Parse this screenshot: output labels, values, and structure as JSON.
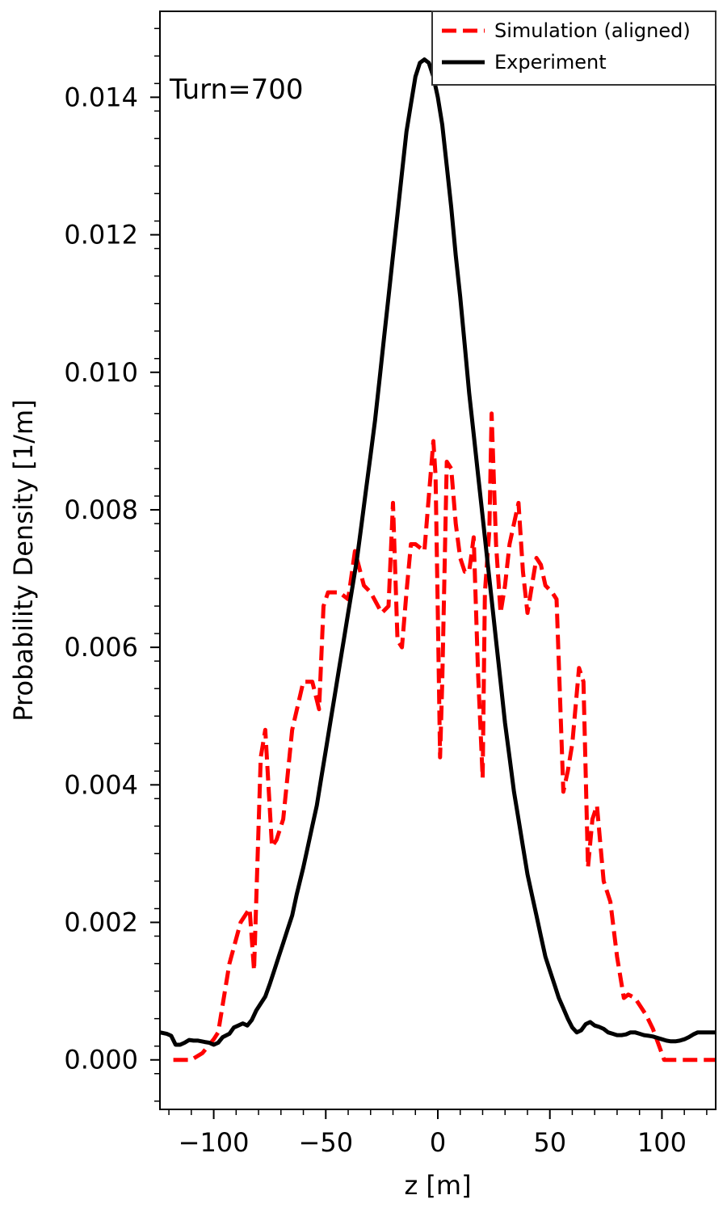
{
  "chart_data": {
    "type": "line",
    "title": "",
    "xlabel": "z [m]",
    "ylabel": "Probability Density [1/m]",
    "xlim": [
      -124,
      124
    ],
    "ylim": [
      -0.00072,
      0.01525
    ],
    "xticks": [
      -100,
      -50,
      0,
      50,
      100
    ],
    "xtick_labels": [
      "−100",
      "−50",
      "0",
      "50",
      "100"
    ],
    "yticks": [
      0.0,
      0.002,
      0.004,
      0.006,
      0.008,
      0.01,
      0.012,
      0.014
    ],
    "ytick_labels": [
      "0.000",
      "0.002",
      "0.004",
      "0.006",
      "0.008",
      "0.010",
      "0.012",
      "0.014"
    ],
    "annotation": "Turn=700",
    "legend_position": "upper right",
    "grid": false,
    "series": [
      {
        "name": "Simulation (aligned)",
        "color": "#ff0000",
        "style": "dashed",
        "x": [
          -118,
          -110,
          -105,
          -100,
          -98,
          -93,
          -88,
          -84,
          -82,
          -79,
          -77,
          -74,
          -72,
          -69,
          -65,
          -60,
          -58,
          -56,
          -53,
          -51,
          -49,
          -44,
          -40,
          -37,
          -33,
          -30,
          -25,
          -22,
          -20,
          -18,
          -16,
          -14,
          -12,
          -10,
          -6,
          -4,
          -2,
          -1,
          0,
          1,
          2,
          4,
          6,
          8,
          10,
          12,
          14,
          16,
          18,
          20,
          21,
          23,
          24,
          26,
          28,
          30,
          32,
          34,
          36,
          38,
          40,
          42,
          44,
          46,
          48,
          51,
          53,
          56,
          58,
          60,
          63,
          65,
          67,
          69,
          71,
          74,
          77,
          80,
          83,
          85,
          88,
          93,
          96,
          101,
          105,
          110,
          116,
          124
        ],
        "y": [
          0.0,
          0.0,
          0.0001,
          0.0003,
          0.0004,
          0.0014,
          0.002,
          0.0022,
          0.0013,
          0.0044,
          0.0048,
          0.0031,
          0.0032,
          0.0035,
          0.0048,
          0.0055,
          0.0055,
          0.0055,
          0.0051,
          0.0066,
          0.0068,
          0.0068,
          0.0067,
          0.0074,
          0.0069,
          0.0068,
          0.0065,
          0.0066,
          0.0081,
          0.0061,
          0.006,
          0.0068,
          0.0075,
          0.0075,
          0.0074,
          0.0082,
          0.009,
          0.0085,
          0.0065,
          0.0044,
          0.0055,
          0.0087,
          0.0086,
          0.0078,
          0.0073,
          0.0071,
          0.0071,
          0.0076,
          0.0056,
          0.0041,
          0.0068,
          0.0077,
          0.0094,
          0.0075,
          0.0065,
          0.0069,
          0.0075,
          0.0078,
          0.0081,
          0.0071,
          0.0065,
          0.0069,
          0.0073,
          0.0072,
          0.0069,
          0.0068,
          0.0067,
          0.0039,
          0.0042,
          0.0046,
          0.0057,
          0.0055,
          0.0028,
          0.0035,
          0.0037,
          0.0026,
          0.0023,
          0.0015,
          0.0009,
          0.00095,
          0.0009,
          0.00065,
          0.00045,
          0.0,
          0.0,
          0.0,
          0.0,
          0.0
        ]
      },
      {
        "name": "Experiment",
        "color": "#000000",
        "style": "solid",
        "x": [
          -124,
          -121,
          -119,
          -117,
          -115,
          -113,
          -111,
          -109,
          -107,
          -104,
          -102,
          -100,
          -98,
          -96,
          -93,
          -91,
          -89,
          -87,
          -85,
          -83,
          -81,
          -79,
          -77,
          -75,
          -73,
          -71,
          -69,
          -67,
          -65,
          -63,
          -60,
          -58,
          -56,
          -54,
          -52,
          -50,
          -48,
          -46,
          -44,
          -42,
          -40,
          -38,
          -36,
          -34,
          -32,
          -30,
          -28,
          -26,
          -24,
          -22,
          -20,
          -18,
          -16,
          -14,
          -12,
          -10,
          -8,
          -6,
          -4,
          -2,
          0,
          2,
          4,
          6,
          8,
          10,
          12,
          14,
          16,
          18,
          20,
          22,
          24,
          26,
          28,
          30,
          32,
          34,
          36,
          38,
          40,
          42,
          44,
          46,
          48,
          50,
          52,
          54,
          56,
          58,
          60,
          62,
          64,
          66,
          68,
          70,
          72,
          74,
          76,
          78,
          80,
          82,
          84,
          86,
          88,
          90,
          92,
          94,
          96,
          98,
          100,
          102,
          104,
          106,
          108,
          110,
          112,
          114,
          116,
          118,
          120,
          122,
          124
        ],
        "y": [
          0.0004,
          0.00038,
          0.00035,
          0.00022,
          0.00022,
          0.00025,
          0.00029,
          0.00028,
          0.00028,
          0.00026,
          0.00025,
          0.00022,
          0.00025,
          0.00033,
          0.00038,
          0.00047,
          0.0005,
          0.00053,
          0.0005,
          0.00058,
          0.00072,
          0.00082,
          0.00092,
          0.0011,
          0.0013,
          0.0015,
          0.0017,
          0.0019,
          0.0021,
          0.0024,
          0.0028,
          0.0031,
          0.0034,
          0.0037,
          0.0041,
          0.0045,
          0.0049,
          0.0053,
          0.0057,
          0.0061,
          0.0065,
          0.0069,
          0.0073,
          0.0078,
          0.0083,
          0.0088,
          0.0093,
          0.0099,
          0.0105,
          0.0111,
          0.0117,
          0.0123,
          0.0129,
          0.0135,
          0.0139,
          0.0143,
          0.0145,
          0.01455,
          0.0145,
          0.0143,
          0.014,
          0.0136,
          0.013,
          0.0124,
          0.0117,
          0.0111,
          0.0104,
          0.0097,
          0.0091,
          0.0085,
          0.0079,
          0.0073,
          0.0067,
          0.0061,
          0.0055,
          0.0049,
          0.0044,
          0.0039,
          0.0035,
          0.0031,
          0.0027,
          0.0024,
          0.0021,
          0.0018,
          0.0015,
          0.0013,
          0.0011,
          0.0009,
          0.00075,
          0.0006,
          0.00047,
          0.0004,
          0.00043,
          0.00052,
          0.00055,
          0.0005,
          0.00048,
          0.00045,
          0.0004,
          0.00038,
          0.00036,
          0.00036,
          0.00037,
          0.0004,
          0.0004,
          0.00038,
          0.00036,
          0.00035,
          0.00034,
          0.00032,
          0.0003,
          0.00028,
          0.00027,
          0.00027,
          0.00028,
          0.0003,
          0.00033,
          0.00037,
          0.0004,
          0.0004,
          0.0004,
          0.0004,
          0.0004
        ]
      }
    ]
  }
}
